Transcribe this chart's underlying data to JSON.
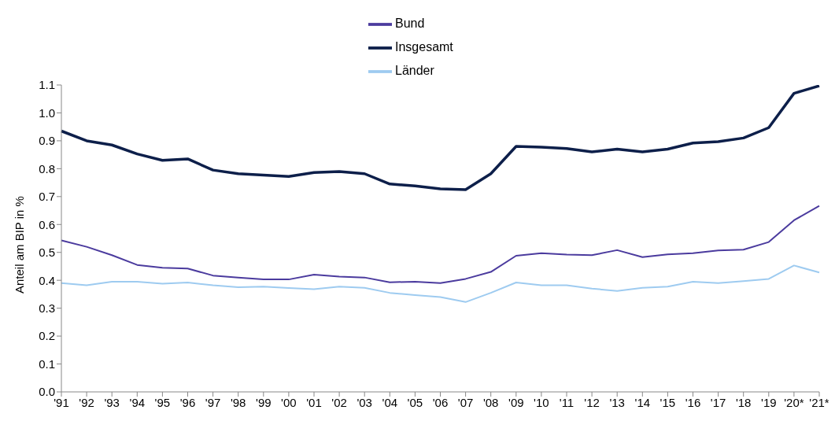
{
  "chart_data": {
    "type": "line",
    "ylabel": "Anteil am BIP in %",
    "categories": [
      "'91",
      "'92",
      "'93",
      "'94",
      "'95",
      "'96",
      "'97",
      "'98",
      "'99",
      "'00",
      "'01",
      "'02",
      "'03",
      "'04",
      "'05",
      "'06",
      "'07",
      "'08",
      "'09",
      "'10",
      "'11",
      "'12",
      "'13",
      "'14",
      "'15",
      "'16",
      "'17",
      "'18",
      "'19",
      "'20*",
      "'21*"
    ],
    "series": [
      {
        "name": "Bund",
        "color": "#4b3b9e",
        "values": [
          0.543,
          0.52,
          0.49,
          0.455,
          0.445,
          0.442,
          0.417,
          0.41,
          0.403,
          0.403,
          0.42,
          0.413,
          0.41,
          0.393,
          0.395,
          0.39,
          0.405,
          0.43,
          0.488,
          0.497,
          0.492,
          0.49,
          0.508,
          0.483,
          0.493,
          0.497,
          0.507,
          0.51,
          0.537,
          0.615,
          0.667
        ]
      },
      {
        "name": "Länder",
        "color": "#9ecbf0",
        "values": [
          0.39,
          0.382,
          0.395,
          0.395,
          0.388,
          0.392,
          0.382,
          0.375,
          0.377,
          0.372,
          0.368,
          0.377,
          0.373,
          0.355,
          0.347,
          0.34,
          0.322,
          0.355,
          0.392,
          0.382,
          0.382,
          0.37,
          0.362,
          0.373,
          0.377,
          0.395,
          0.39,
          0.397,
          0.405,
          0.453,
          0.428
        ]
      },
      {
        "name": "Insgesamt",
        "color": "#0d1f4a",
        "values": [
          0.935,
          0.9,
          0.885,
          0.853,
          0.83,
          0.835,
          0.795,
          0.782,
          0.777,
          0.772,
          0.786,
          0.79,
          0.782,
          0.745,
          0.738,
          0.728,
          0.725,
          0.782,
          0.88,
          0.877,
          0.872,
          0.86,
          0.87,
          0.86,
          0.87,
          0.892,
          0.897,
          0.91,
          0.947,
          1.07,
          1.097
        ]
      }
    ],
    "ylim": [
      0,
      1.1
    ],
    "yticks": [
      {
        "value": 0,
        "label": "0.0"
      },
      0.1,
      0.2,
      0.3,
      0.4,
      0.5,
      0.6,
      0.7,
      0.8,
      0.9,
      {
        "value": 1,
        "label": "1.0"
      },
      1.1
    ],
    "grid": false,
    "legend": "top",
    "marker": "none",
    "line_style": "solid"
  }
}
